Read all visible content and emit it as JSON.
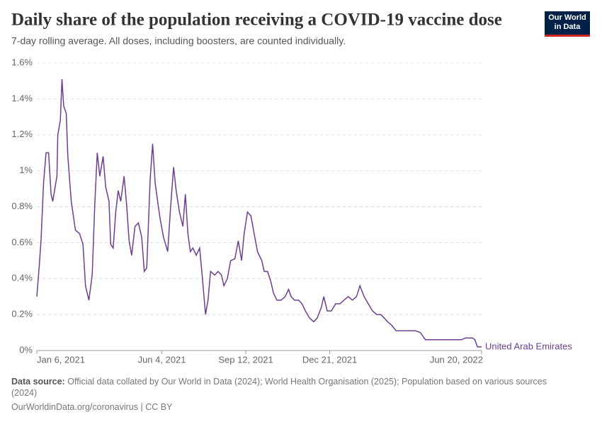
{
  "chart_data": {
    "type": "line",
    "title": "Daily share of the population receiving a COVID-19 vaccine dose",
    "subtitle": "7-day rolling average. All doses, including boosters, are counted individually.",
    "x": [
      "2021-01-06",
      "2021-01-09",
      "2021-01-11",
      "2021-01-14",
      "2021-01-17",
      "2021-01-20",
      "2021-01-23",
      "2021-01-25",
      "2021-01-30",
      "2021-01-31",
      "2021-02-03",
      "2021-02-05",
      "2021-02-07",
      "2021-02-10",
      "2021-02-12",
      "2021-02-16",
      "2021-02-21",
      "2021-02-26",
      "2021-03-02",
      "2021-03-05",
      "2021-03-09",
      "2021-03-13",
      "2021-03-16",
      "2021-03-19",
      "2021-03-22",
      "2021-03-26",
      "2021-03-29",
      "2021-04-02",
      "2021-04-04",
      "2021-04-07",
      "2021-04-10",
      "2021-04-13",
      "2021-04-16",
      "2021-04-20",
      "2021-04-23",
      "2021-04-26",
      "2021-04-29",
      "2021-05-03",
      "2021-05-07",
      "2021-05-11",
      "2021-05-14",
      "2021-05-17",
      "2021-05-21",
      "2021-05-24",
      "2021-05-27",
      "2021-05-30",
      "2021-06-02",
      "2021-06-06",
      "2021-06-11",
      "2021-06-14",
      "2021-06-18",
      "2021-06-21",
      "2021-06-25",
      "2021-06-29",
      "2021-07-02",
      "2021-07-05",
      "2021-07-08",
      "2021-07-11",
      "2021-07-15",
      "2021-07-19",
      "2021-07-22",
      "2021-07-26",
      "2021-07-29",
      "2021-08-01",
      "2021-08-06",
      "2021-08-10",
      "2021-08-14",
      "2021-08-17",
      "2021-08-21",
      "2021-08-25",
      "2021-08-30",
      "2021-09-03",
      "2021-09-07",
      "2021-09-10",
      "2021-09-14",
      "2021-09-18",
      "2021-09-22",
      "2021-09-26",
      "2021-10-01",
      "2021-10-04",
      "2021-10-08",
      "2021-10-12",
      "2021-10-15",
      "2021-10-19",
      "2021-10-24",
      "2021-10-29",
      "2021-11-02",
      "2021-11-05",
      "2021-11-09",
      "2021-11-14",
      "2021-11-18",
      "2021-11-22",
      "2021-11-27",
      "2021-12-02",
      "2021-12-06",
      "2021-12-11",
      "2021-12-14",
      "2021-12-18",
      "2021-12-23",
      "2021-12-28",
      "2022-01-02",
      "2022-01-07",
      "2022-01-12",
      "2022-01-17",
      "2022-01-22",
      "2022-01-26",
      "2022-01-31",
      "2022-02-05",
      "2022-02-10",
      "2022-02-15",
      "2022-02-20",
      "2022-02-24",
      "2022-02-28",
      "2022-03-05",
      "2022-03-10",
      "2022-03-16",
      "2022-03-25",
      "2022-04-02",
      "2022-04-08",
      "2022-04-14",
      "2022-04-23",
      "2022-05-10",
      "2022-05-27",
      "2022-06-01",
      "2022-06-09",
      "2022-06-12",
      "2022-06-15",
      "2022-06-20"
    ],
    "series": [
      {
        "name": "United Arab Emirates",
        "color": "#6d3e91",
        "values": [
          0.3,
          0.48,
          0.61,
          0.93,
          1.1,
          1.1,
          0.87,
          0.83,
          0.97,
          1.2,
          1.28,
          1.51,
          1.36,
          1.32,
          1.08,
          0.83,
          0.67,
          0.65,
          0.59,
          0.36,
          0.28,
          0.42,
          0.81,
          1.1,
          0.97,
          1.08,
          0.91,
          0.83,
          0.59,
          0.57,
          0.77,
          0.89,
          0.83,
          0.97,
          0.81,
          0.61,
          0.53,
          0.69,
          0.71,
          0.63,
          0.44,
          0.46,
          0.95,
          1.15,
          0.93,
          0.83,
          0.73,
          0.63,
          0.55,
          0.77,
          1.02,
          0.89,
          0.77,
          0.69,
          0.87,
          0.65,
          0.55,
          0.57,
          0.53,
          0.57,
          0.42,
          0.2,
          0.28,
          0.44,
          0.42,
          0.44,
          0.42,
          0.36,
          0.4,
          0.5,
          0.51,
          0.61,
          0.5,
          0.65,
          0.77,
          0.75,
          0.65,
          0.55,
          0.5,
          0.44,
          0.44,
          0.38,
          0.32,
          0.28,
          0.28,
          0.3,
          0.34,
          0.3,
          0.28,
          0.28,
          0.26,
          0.22,
          0.18,
          0.16,
          0.18,
          0.24,
          0.3,
          0.22,
          0.22,
          0.26,
          0.26,
          0.28,
          0.3,
          0.28,
          0.3,
          0.36,
          0.3,
          0.26,
          0.22,
          0.2,
          0.2,
          0.18,
          0.16,
          0.14,
          0.11,
          0.11,
          0.11,
          0.11,
          0.1,
          0.06,
          0.06,
          0.06,
          0.06,
          0.07,
          0.07,
          0.06,
          0.02,
          0.02
        ]
      }
    ],
    "xlim": [
      "2021-01-06",
      "2022-06-20"
    ],
    "xticks": [
      {
        "value": "2021-01-06",
        "label": "Jan 6, 2021"
      },
      {
        "value": "2021-06-04",
        "label": "Jun 4, 2021"
      },
      {
        "value": "2021-09-12",
        "label": "Sep 12, 2021"
      },
      {
        "value": "2021-12-21",
        "label": "Dec 21, 2021"
      },
      {
        "value": "2022-06-20",
        "label": "Jun 20, 2022"
      }
    ],
    "ylim": [
      0,
      1.6
    ],
    "yticks": [
      {
        "value": 0,
        "label": "0%"
      },
      {
        "value": 0.2,
        "label": "0.2%"
      },
      {
        "value": 0.4,
        "label": "0.4%"
      },
      {
        "value": 0.6,
        "label": "0.6%"
      },
      {
        "value": 0.8,
        "label": "0.8%"
      },
      {
        "value": 1,
        "label": "1%"
      },
      {
        "value": 1.2,
        "label": "1.2%"
      },
      {
        "value": 1.4,
        "label": "1.4%"
      },
      {
        "value": 1.6,
        "label": "1.6%"
      }
    ],
    "grid": true
  },
  "logo": {
    "line1": "Our World",
    "line2": "in Data"
  },
  "footer": {
    "source_label": "Data source:",
    "source_text": "Official data collated by Our World in Data (2024); World Health Organisation (2025); Population based on various sources (2024)",
    "url_line": "OurWorldinData.org/coronavirus | CC BY"
  }
}
